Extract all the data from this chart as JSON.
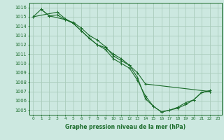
{
  "background_color": "#cce8e0",
  "grid_color": "#aaccbb",
  "line_color": "#1a6b2a",
  "marker": "+",
  "xlabel": "Graphe pression niveau de la mer (hPa)",
  "xlabel_color": "#1a6b2a",
  "tick_color": "#1a6b2a",
  "xlim": [
    -0.5,
    23.5
  ],
  "ylim": [
    1004.5,
    1016.5
  ],
  "yticks": [
    1005,
    1006,
    1007,
    1008,
    1009,
    1010,
    1011,
    1012,
    1013,
    1014,
    1015,
    1016
  ],
  "xticks": [
    0,
    1,
    2,
    3,
    4,
    5,
    6,
    7,
    8,
    9,
    10,
    11,
    12,
    13,
    14,
    15,
    16,
    17,
    18,
    19,
    20,
    21,
    22,
    23
  ],
  "series": [
    [
      null,
      1015.8,
      1015.1,
      null,
      1014.7,
      1014.4,
      1013.8,
      1013.0,
      1012.5,
      1011.8,
      1010.8,
      1010.3,
      1009.8,
      1008.5,
      1006.2,
      1005.4,
      1004.8,
      1005.0,
      1005.2,
      1005.6,
      1006.1,
      1006.9,
      1007.0,
      null
    ],
    [
      1015.0,
      1015.8,
      1015.1,
      1015.2,
      1014.7,
      1014.3,
      1013.5,
      1012.7,
      1012.0,
      1011.5,
      1010.5,
      1010.0,
      1009.5,
      1008.2,
      1006.5,
      1005.4,
      1004.8,
      1005.0,
      1005.3,
      1005.8,
      1006.1,
      1006.9,
      1007.1,
      null
    ],
    [
      1015.0,
      null,
      null,
      1015.5,
      1014.8,
      1014.3,
      1013.5,
      1012.7,
      1012.0,
      1011.7,
      1011.0,
      1010.5,
      1009.8,
      1009.0,
      1007.8,
      null,
      null,
      null,
      null,
      null,
      null,
      null,
      1007.0,
      null
    ]
  ]
}
